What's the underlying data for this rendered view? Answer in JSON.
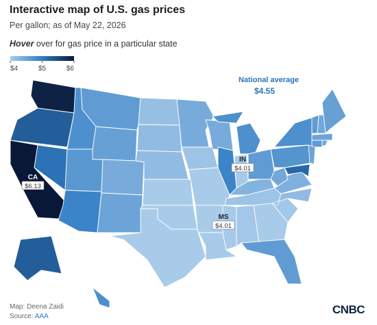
{
  "title": "Interactive map of U.S. gas prices",
  "subtitle": "Per gallon; as of May 22, 2026",
  "instruction": {
    "emphasis": "Hover",
    "text": " over for gas price in a particular state"
  },
  "legend": {
    "ticks": [
      {
        "value": 4,
        "label": "$4"
      },
      {
        "value": 5,
        "label": "$5"
      },
      {
        "value": 6,
        "label": "$6"
      }
    ],
    "colors": [
      "#a9cbea",
      "#2f7cc4",
      "#0a1838"
    ]
  },
  "national_average": {
    "label": "National average",
    "value": 4.55,
    "value_label": "$4.55"
  },
  "states": [
    {
      "value": 5.9
    },
    {
      "value": 5.3
    },
    {
      "label": "CA",
      "value": 6.13,
      "value_label": "$6.13"
    },
    {
      "value": 5.1
    },
    {
      "value": 4.75
    },
    {
      "value": 4.6
    },
    {
      "value": 4.55
    },
    {
      "value": 4.65
    },
    {
      "value": 4.9
    },
    {
      "value": 4.4
    },
    {
      "value": 4.5
    },
    {
      "value": 4.15
    },
    {
      "value": 4.2
    },
    {
      "value": 4.2
    },
    {
      "value": 3.95
    },
    {
      "value": 3.9
    },
    {
      "value": 3.95
    },
    {
      "value": 4.4
    },
    {
      "value": 4.1
    },
    {
      "value": 4.0
    },
    {
      "value": 3.95
    },
    {
      "value": 3.95
    },
    {
      "value": 4.4
    },
    {
      "value": 4.9
    },
    {
      "value": 4.75
    },
    {
      "label": "IN",
      "value": 4.01,
      "value_label": "$4.01"
    },
    {
      "value": 4.6
    },
    {
      "value": 4.3
    },
    {
      "value": 4.1
    },
    {
      "label": "MS",
      "value": 4.01,
      "value_label": "$4.01"
    },
    {
      "value": 4.05
    },
    {
      "value": 3.95
    },
    {
      "value": 4.6
    },
    {
      "value": 4.05
    },
    {
      "value": 4.2
    },
    {
      "value": 4.35
    },
    {
      "value": 4.45
    },
    {
      "value": 4.7
    },
    {
      "value": 4.75
    },
    {
      "value": 4.55
    },
    {
      "value": 4.45
    },
    {
      "value": 4.6
    },
    {
      "value": 4.5
    },
    {
      "value": 4.6
    },
    {
      "value": 4.45
    },
    {
      "value": 4.5
    },
    {
      "value": 5.2
    },
    {
      "value": 5.3
    },
    {
      "value": 4.75
    }
  ],
  "footer": {
    "credit": "Map: Deena Zaidi",
    "source_prefix": "Source: ",
    "source": "AAA"
  },
  "logo": "CNBC"
}
